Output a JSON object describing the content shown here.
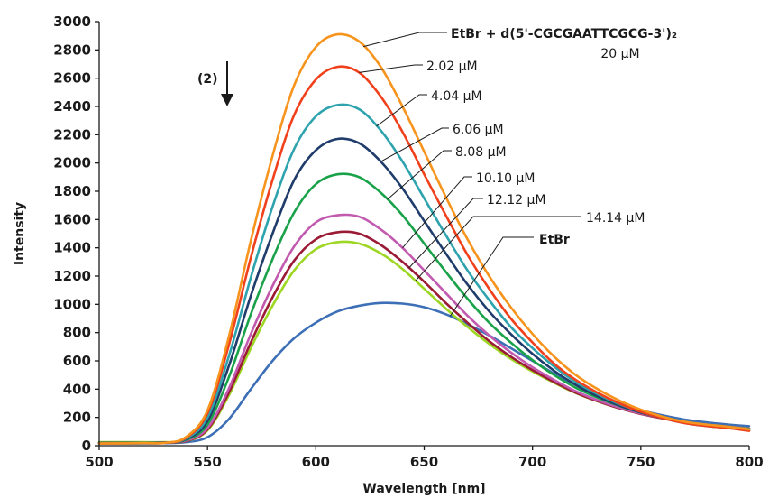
{
  "chart_data": {
    "type": "line",
    "xlabel": "Wavelength [nm]",
    "ylabel": "Intensity",
    "xlim": [
      500,
      800
    ],
    "ylim": [
      0,
      3000
    ],
    "x_ticks": [
      500,
      550,
      600,
      650,
      700,
      750,
      800
    ],
    "y_ticks": [
      0,
      200,
      400,
      600,
      800,
      1000,
      1200,
      1400,
      1600,
      1800,
      2000,
      2200,
      2400,
      2600,
      2800,
      3000
    ],
    "grid": false,
    "annotations": {
      "arrow_label": "(2)",
      "top_label_line1": "EtBr + d(5'-CGCGAATTCGCG-3')₂",
      "top_label_line2": "20 µM"
    },
    "series": [
      {
        "name": "EtBr + d(5'-CGCGAATTCGCG-3')₂",
        "color": "#f7941d",
        "points": [
          [
            500,
            15
          ],
          [
            520,
            18
          ],
          [
            530,
            20
          ],
          [
            540,
            60
          ],
          [
            550,
            250
          ],
          [
            560,
            780
          ],
          [
            570,
            1450
          ],
          [
            580,
            2050
          ],
          [
            590,
            2550
          ],
          [
            600,
            2820
          ],
          [
            610,
            2910
          ],
          [
            620,
            2860
          ],
          [
            630,
            2680
          ],
          [
            640,
            2400
          ],
          [
            650,
            2080
          ],
          [
            660,
            1760
          ],
          [
            670,
            1460
          ],
          [
            680,
            1200
          ],
          [
            690,
            980
          ],
          [
            700,
            790
          ],
          [
            710,
            630
          ],
          [
            720,
            500
          ],
          [
            730,
            400
          ],
          [
            740,
            320
          ],
          [
            750,
            255
          ],
          [
            760,
            205
          ],
          [
            770,
            170
          ],
          [
            780,
            150
          ],
          [
            790,
            135
          ],
          [
            800,
            115
          ]
        ]
      },
      {
        "label": "2.02 µM",
        "color": "#f0401c",
        "points": [
          [
            500,
            15
          ],
          [
            520,
            18
          ],
          [
            530,
            20
          ],
          [
            540,
            55
          ],
          [
            550,
            230
          ],
          [
            560,
            720
          ],
          [
            570,
            1330
          ],
          [
            580,
            1880
          ],
          [
            590,
            2340
          ],
          [
            600,
            2590
          ],
          [
            610,
            2680
          ],
          [
            620,
            2640
          ],
          [
            630,
            2470
          ],
          [
            640,
            2220
          ],
          [
            650,
            1920
          ],
          [
            660,
            1630
          ],
          [
            670,
            1350
          ],
          [
            680,
            1110
          ],
          [
            690,
            900
          ],
          [
            700,
            730
          ],
          [
            710,
            580
          ],
          [
            720,
            465
          ],
          [
            730,
            375
          ],
          [
            740,
            300
          ],
          [
            750,
            240
          ],
          [
            760,
            195
          ],
          [
            770,
            160
          ],
          [
            780,
            140
          ],
          [
            790,
            125
          ],
          [
            800,
            105
          ]
        ]
      },
      {
        "label": "4.04 µM",
        "color": "#2ea3ae",
        "points": [
          [
            500,
            15
          ],
          [
            520,
            18
          ],
          [
            530,
            20
          ],
          [
            540,
            50
          ],
          [
            550,
            200
          ],
          [
            560,
            640
          ],
          [
            570,
            1190
          ],
          [
            580,
            1690
          ],
          [
            590,
            2100
          ],
          [
            600,
            2330
          ],
          [
            610,
            2410
          ],
          [
            620,
            2380
          ],
          [
            630,
            2230
          ],
          [
            640,
            2010
          ],
          [
            650,
            1750
          ],
          [
            660,
            1490
          ],
          [
            670,
            1240
          ],
          [
            680,
            1030
          ],
          [
            690,
            840
          ],
          [
            700,
            690
          ],
          [
            710,
            560
          ],
          [
            720,
            450
          ],
          [
            730,
            365
          ],
          [
            740,
            295
          ],
          [
            750,
            240
          ],
          [
            760,
            195
          ],
          [
            770,
            160
          ],
          [
            780,
            140
          ],
          [
            790,
            125
          ],
          [
            800,
            110
          ]
        ]
      },
      {
        "label": "6.06 µM",
        "color": "#1f3c6b",
        "points": [
          [
            500,
            20
          ],
          [
            520,
            20
          ],
          [
            530,
            22
          ],
          [
            540,
            45
          ],
          [
            550,
            175
          ],
          [
            560,
            570
          ],
          [
            570,
            1060
          ],
          [
            580,
            1500
          ],
          [
            590,
            1880
          ],
          [
            600,
            2090
          ],
          [
            610,
            2170
          ],
          [
            620,
            2140
          ],
          [
            630,
            2010
          ],
          [
            640,
            1820
          ],
          [
            650,
            1590
          ],
          [
            660,
            1360
          ],
          [
            670,
            1140
          ],
          [
            680,
            950
          ],
          [
            690,
            790
          ],
          [
            700,
            650
          ],
          [
            710,
            530
          ],
          [
            720,
            430
          ],
          [
            730,
            350
          ],
          [
            740,
            285
          ],
          [
            750,
            235
          ],
          [
            760,
            195
          ],
          [
            770,
            162
          ],
          [
            780,
            142
          ],
          [
            790,
            128
          ],
          [
            800,
            112
          ]
        ]
      },
      {
        "label": "8.08 µM",
        "color": "#1aa24a",
        "points": [
          [
            500,
            20
          ],
          [
            520,
            20
          ],
          [
            530,
            22
          ],
          [
            540,
            40
          ],
          [
            550,
            150
          ],
          [
            560,
            490
          ],
          [
            570,
            930
          ],
          [
            580,
            1320
          ],
          [
            590,
            1650
          ],
          [
            600,
            1850
          ],
          [
            610,
            1920
          ],
          [
            620,
            1900
          ],
          [
            630,
            1790
          ],
          [
            640,
            1630
          ],
          [
            650,
            1430
          ],
          [
            660,
            1230
          ],
          [
            670,
            1040
          ],
          [
            680,
            870
          ],
          [
            690,
            730
          ],
          [
            700,
            605
          ],
          [
            710,
            500
          ],
          [
            720,
            410
          ],
          [
            730,
            340
          ],
          [
            740,
            282
          ],
          [
            750,
            235
          ],
          [
            760,
            198
          ],
          [
            770,
            168
          ],
          [
            780,
            148
          ],
          [
            790,
            133
          ],
          [
            800,
            118
          ]
        ]
      },
      {
        "label": "10.10 µM",
        "color": "#c25bb0",
        "points": [
          [
            500,
            20
          ],
          [
            520,
            20
          ],
          [
            530,
            22
          ],
          [
            540,
            35
          ],
          [
            550,
            125
          ],
          [
            560,
            410
          ],
          [
            570,
            790
          ],
          [
            580,
            1130
          ],
          [
            590,
            1410
          ],
          [
            600,
            1580
          ],
          [
            610,
            1630
          ],
          [
            620,
            1620
          ],
          [
            630,
            1530
          ],
          [
            640,
            1400
          ],
          [
            650,
            1240
          ],
          [
            660,
            1080
          ],
          [
            670,
            920
          ],
          [
            680,
            780
          ],
          [
            690,
            660
          ],
          [
            700,
            555
          ],
          [
            710,
            465
          ],
          [
            720,
            385
          ],
          [
            730,
            322
          ],
          [
            740,
            270
          ],
          [
            750,
            228
          ],
          [
            760,
            195
          ],
          [
            770,
            168
          ],
          [
            780,
            148
          ],
          [
            790,
            134
          ],
          [
            800,
            120
          ]
        ]
      },
      {
        "label": "12.12 µM",
        "color": "#9b1b36",
        "points": [
          [
            500,
            20
          ],
          [
            520,
            20
          ],
          [
            530,
            22
          ],
          [
            540,
            32
          ],
          [
            550,
            115
          ],
          [
            560,
            380
          ],
          [
            570,
            730
          ],
          [
            580,
            1050
          ],
          [
            590,
            1310
          ],
          [
            600,
            1460
          ],
          [
            610,
            1510
          ],
          [
            620,
            1500
          ],
          [
            630,
            1420
          ],
          [
            640,
            1300
          ],
          [
            650,
            1160
          ],
          [
            660,
            1010
          ],
          [
            670,
            870
          ],
          [
            680,
            740
          ],
          [
            690,
            630
          ],
          [
            700,
            535
          ],
          [
            710,
            450
          ],
          [
            720,
            375
          ],
          [
            730,
            315
          ],
          [
            740,
            265
          ],
          [
            750,
            225
          ],
          [
            760,
            193
          ],
          [
            770,
            167
          ],
          [
            780,
            148
          ],
          [
            790,
            134
          ],
          [
            800,
            120
          ]
        ]
      },
      {
        "label": "14.14 µM",
        "color": "#9ed624",
        "points": [
          [
            500,
            25
          ],
          [
            520,
            25
          ],
          [
            530,
            25
          ],
          [
            540,
            32
          ],
          [
            550,
            108
          ],
          [
            560,
            360
          ],
          [
            570,
            690
          ],
          [
            580,
            990
          ],
          [
            590,
            1240
          ],
          [
            600,
            1390
          ],
          [
            610,
            1440
          ],
          [
            620,
            1430
          ],
          [
            630,
            1360
          ],
          [
            640,
            1250
          ],
          [
            650,
            1110
          ],
          [
            660,
            970
          ],
          [
            670,
            840
          ],
          [
            680,
            720
          ],
          [
            690,
            615
          ],
          [
            700,
            525
          ],
          [
            710,
            445
          ],
          [
            720,
            372
          ],
          [
            730,
            314
          ],
          [
            740,
            265
          ],
          [
            750,
            226
          ],
          [
            760,
            194
          ],
          [
            770,
            168
          ],
          [
            780,
            149
          ],
          [
            790,
            135
          ],
          [
            800,
            122
          ]
        ]
      },
      {
        "label": "EtBr",
        "color": "#3c6fb5",
        "points": [
          [
            500,
            15
          ],
          [
            520,
            15
          ],
          [
            530,
            18
          ],
          [
            540,
            25
          ],
          [
            550,
            60
          ],
          [
            560,
            190
          ],
          [
            570,
            400
          ],
          [
            580,
            600
          ],
          [
            590,
            760
          ],
          [
            600,
            870
          ],
          [
            610,
            950
          ],
          [
            620,
            990
          ],
          [
            630,
            1010
          ],
          [
            640,
            1005
          ],
          [
            650,
            980
          ],
          [
            660,
            930
          ],
          [
            670,
            860
          ],
          [
            680,
            780
          ],
          [
            690,
            690
          ],
          [
            700,
            600
          ],
          [
            710,
            510
          ],
          [
            720,
            430
          ],
          [
            730,
            360
          ],
          [
            740,
            300
          ],
          [
            750,
            250
          ],
          [
            760,
            215
          ],
          [
            770,
            185
          ],
          [
            780,
            165
          ],
          [
            790,
            150
          ],
          [
            800,
            138
          ]
        ]
      }
    ]
  }
}
